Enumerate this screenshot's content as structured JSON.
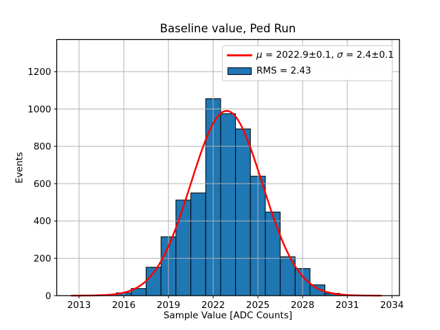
{
  "chart_data": {
    "type": "bar",
    "subtype": "histogram_with_gaussian_fit",
    "title": "Baseline value, Ped Run",
    "xlabel": "Sample Value [ADC Counts]",
    "ylabel": "Events",
    "bin_centers": [
      2016,
      2017,
      2018,
      2019,
      2020,
      2021,
      2022,
      2023,
      2024,
      2025,
      2026,
      2027,
      2028,
      2029,
      2030
    ],
    "bin_width": 1,
    "values": [
      15,
      38,
      152,
      315,
      512,
      550,
      1055,
      975,
      893,
      640,
      448,
      208,
      145,
      58,
      12
    ],
    "xlim": [
      2011.5,
      2034.5
    ],
    "ylim": [
      0,
      1372
    ],
    "xticks": [
      2013,
      2016,
      2019,
      2022,
      2025,
      2028,
      2031,
      2034
    ],
    "yticks": [
      0,
      200,
      400,
      600,
      800,
      1000,
      1200
    ],
    "grid": true,
    "legend_position": "upper right",
    "fit_curve": {
      "shape": "gaussian",
      "mu": 2022.9,
      "sigma": 2.4,
      "amplitude": 990,
      "x_range": [
        2012.5,
        2033.3
      ],
      "color": "#ff0000",
      "linewidth": 2.5
    },
    "hist_style": {
      "fill": "#1f77b4",
      "edge": "#000000",
      "edge_width": 1
    },
    "style": {
      "grid_color": "#b0b0b0",
      "spine_color": "#000000",
      "tick_color": "#000000",
      "background": "#ffffff",
      "legend_edge": "#cccccc"
    }
  },
  "legend": {
    "fit": {
      "mu_sym": "μ",
      "mu_val": " = 2022.9±0.1, ",
      "sigma_sym": "σ",
      "sigma_val": " = 2.4±0.1"
    },
    "hist": "RMS = 2.43"
  }
}
